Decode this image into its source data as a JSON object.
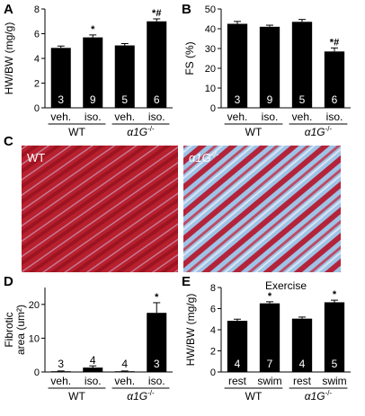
{
  "panels": {
    "A": {
      "letter": "A"
    },
    "B": {
      "letter": "B"
    },
    "C": {
      "letter": "C",
      "images": [
        {
          "label": "WT"
        },
        {
          "label": "α1G",
          "sup": "-/-"
        }
      ]
    },
    "D": {
      "letter": "D"
    },
    "E": {
      "letter": "E"
    }
  },
  "colors": {
    "bar": "#000000",
    "micro_red": "#b8202e",
    "micro_blue": "#9ec3e6",
    "micro_bg": "#d8d0e8"
  },
  "chart_data": [
    {
      "id": "A",
      "type": "bar",
      "ylabel": "HW/BW (mg/g)",
      "ylim": [
        0,
        8
      ],
      "yticks": [
        0,
        2,
        4,
        6,
        8
      ],
      "categories": [
        "veh.",
        "iso.",
        "veh.",
        "iso."
      ],
      "groups": [
        {
          "label": "WT",
          "span": [
            0,
            1
          ]
        },
        {
          "label": "α1G",
          "sup": "-/-",
          "span": [
            2,
            3
          ]
        }
      ],
      "values": [
        4.85,
        5.7,
        5.05,
        7.0
      ],
      "errors": [
        0.15,
        0.2,
        0.15,
        0.2
      ],
      "counts": [
        "3",
        "9",
        "5",
        "6"
      ],
      "annotations": [
        "",
        "*",
        "",
        "*#"
      ]
    },
    {
      "id": "B",
      "type": "bar",
      "ylabel": "FS (%)",
      "ylim": [
        0,
        50
      ],
      "yticks": [
        0,
        10,
        20,
        30,
        40,
        50
      ],
      "categories": [
        "veh.",
        "iso.",
        "veh.",
        "iso."
      ],
      "groups": [
        {
          "label": "WT",
          "span": [
            0,
            1
          ]
        },
        {
          "label": "α1G",
          "sup": "-/-",
          "span": [
            2,
            3
          ]
        }
      ],
      "values": [
        42.5,
        41.0,
        43.5,
        28.5
      ],
      "errors": [
        1.2,
        0.8,
        1.2,
        1.8
      ],
      "counts": [
        "3",
        "9",
        "5",
        "6"
      ],
      "annotations": [
        "",
        "",
        "",
        "*#"
      ]
    },
    {
      "id": "D",
      "type": "bar",
      "ylabel": "Fibrotic area (um²)",
      "ylim": [
        0,
        25
      ],
      "yticks": [
        0,
        10,
        20
      ],
      "categories": [
        "veh.",
        "iso.",
        "veh.",
        "iso."
      ],
      "groups": [
        {
          "label": "WT",
          "span": [
            0,
            1
          ]
        },
        {
          "label": "α1G",
          "sup": "-/-",
          "span": [
            2,
            3
          ]
        }
      ],
      "values": [
        0.2,
        1.3,
        0.2,
        17.5
      ],
      "errors": [
        0.1,
        0.5,
        0.1,
        3.0
      ],
      "counts": [
        "3",
        "4",
        "4",
        "3"
      ],
      "annotations": [
        "",
        "",
        "",
        "*"
      ]
    },
    {
      "id": "E",
      "type": "bar",
      "title": "Exercise",
      "ylabel": "HW/BW (mg/g)",
      "ylim": [
        0,
        8
      ],
      "yticks": [
        0,
        2,
        4,
        6,
        8
      ],
      "categories": [
        "rest",
        "swim",
        "rest",
        "swim"
      ],
      "groups": [
        {
          "label": "WT",
          "span": [
            0,
            1
          ]
        },
        {
          "label": "α1G",
          "sup": "-/-",
          "span": [
            2,
            3
          ]
        }
      ],
      "values": [
        4.85,
        6.5,
        5.05,
        6.6
      ],
      "errors": [
        0.15,
        0.15,
        0.15,
        0.2
      ],
      "counts": [
        "4",
        "7",
        "4",
        "5"
      ],
      "annotations": [
        "",
        "*",
        "",
        "*"
      ]
    }
  ]
}
